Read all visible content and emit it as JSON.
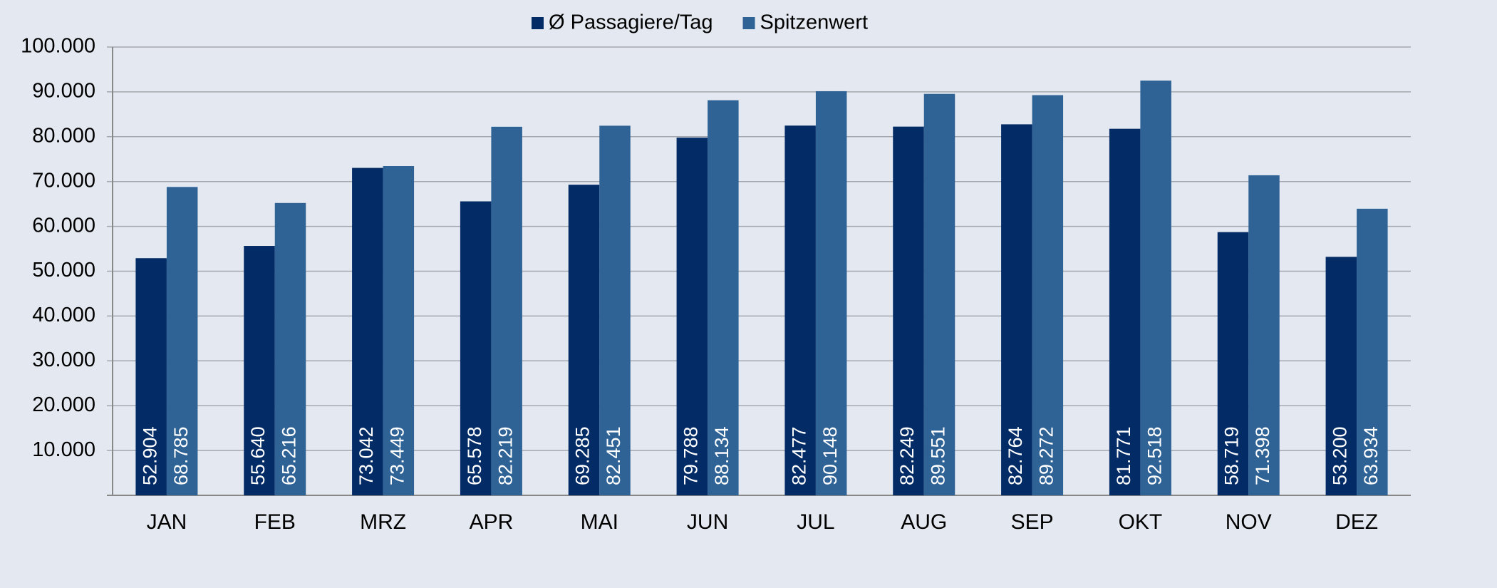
{
  "chart_data": {
    "type": "bar",
    "categories": [
      "JAN",
      "FEB",
      "MRZ",
      "APR",
      "MAI",
      "JUN",
      "JUL",
      "AUG",
      "SEP",
      "OKT",
      "NOV",
      "DEZ"
    ],
    "series": [
      {
        "name": "Ø Passagiere/Tag",
        "color": "#032b66",
        "values": [
          52904,
          55640,
          73042,
          65578,
          69285,
          79788,
          82477,
          82249,
          82764,
          81771,
          58719,
          53200
        ],
        "value_labels": [
          "52.904",
          "55.640",
          "73.042",
          "65.578",
          "69.285",
          "79.788",
          "82.477",
          "82.249",
          "82.764",
          "81.771",
          "58.719",
          "53.200"
        ]
      },
      {
        "name": "Spitzenwert",
        "color": "#2f6396",
        "values": [
          68785,
          65216,
          73449,
          82219,
          82451,
          88134,
          90148,
          89551,
          89272,
          92518,
          71398,
          63934
        ],
        "value_labels": [
          "68.785",
          "65.216",
          "73.449",
          "82.219",
          "82.451",
          "88.134",
          "90.148",
          "89.551",
          "89.272",
          "92.518",
          "71.398",
          "63.934"
        ]
      }
    ],
    "ylim": [
      0,
      100000
    ],
    "yticks": [
      {
        "value": 10000,
        "label": "10.000"
      },
      {
        "value": 20000,
        "label": "20.000"
      },
      {
        "value": 30000,
        "label": "30.000"
      },
      {
        "value": 40000,
        "label": "40.000"
      },
      {
        "value": 50000,
        "label": "50.000"
      },
      {
        "value": 60000,
        "label": "60.000"
      },
      {
        "value": 70000,
        "label": "70.000"
      },
      {
        "value": 80000,
        "label": "80.000"
      },
      {
        "value": 90000,
        "label": "90.000"
      },
      {
        "value": 100000,
        "label": "100.000"
      }
    ],
    "grid": true,
    "legend": "top"
  }
}
